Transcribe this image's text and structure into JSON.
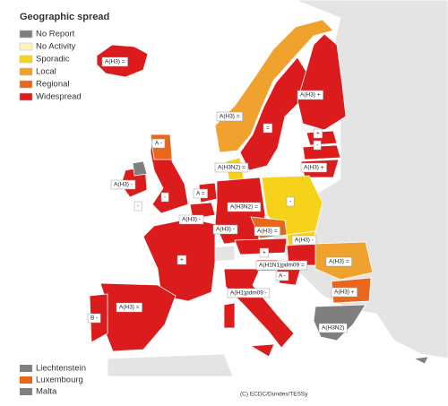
{
  "title": "Geographic spread",
  "legend": [
    {
      "label": "No Report",
      "color": "#7f7f7f"
    },
    {
      "label": "No Activity",
      "color": "#fff3c4"
    },
    {
      "label": "Sporadic",
      "color": "#f7d21a"
    },
    {
      "label": "Local",
      "color": "#f0a22e"
    },
    {
      "label": "Regional",
      "color": "#e8671a"
    },
    {
      "label": "Widespread",
      "color": "#dc1c1c"
    }
  ],
  "map_labels": [
    "A(H3) =",
    "A(H3) +",
    "A(H3) =",
    "=",
    "+",
    "-",
    "A(H3) +",
    "A(H3N2) =",
    "A -",
    "A(H3) -",
    "-",
    "-",
    "A =",
    "A(H3) -",
    "A(H3N2) =",
    "-",
    "A(H3) -",
    "A(H3) =",
    "A(H3) -",
    "+",
    "A(H1N1)pdm09 =",
    "A(H3) =",
    "A -",
    "+",
    "A(H1)pdm09 -",
    "A(H3) +",
    "A(H3) =",
    "B -",
    "A(H3N2)"
  ],
  "small_states": [
    {
      "label": "Liechtenstein",
      "color": "#7f7f7f"
    },
    {
      "label": "Luxembourg",
      "color": "#e8671a"
    },
    {
      "label": "Malta",
      "color": "#7f7f7f"
    }
  ],
  "copyright": "(C) ECDC/Dundes/TESSy"
}
